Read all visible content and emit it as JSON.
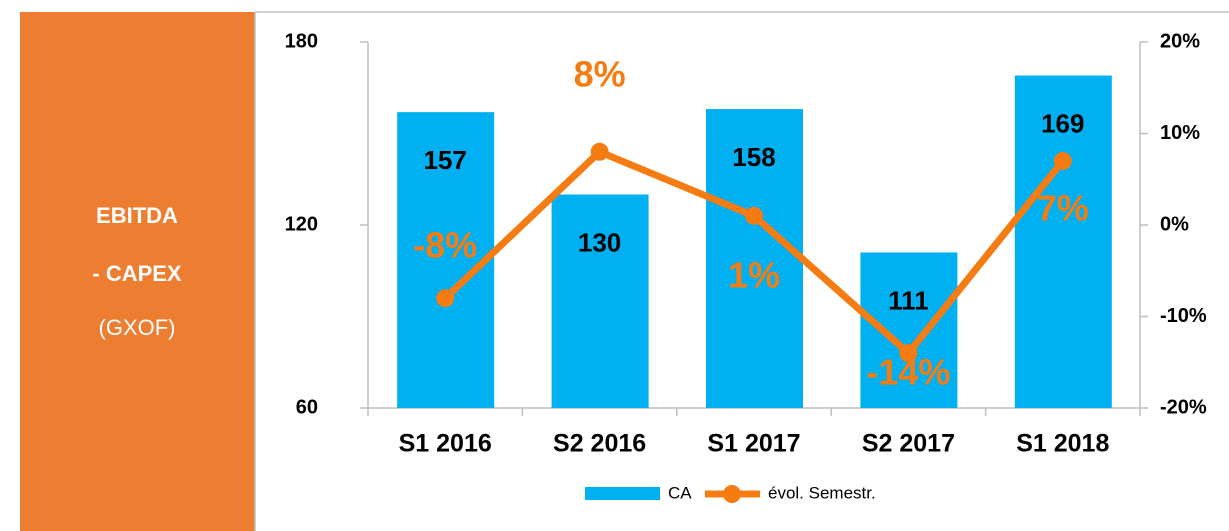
{
  "panel": {
    "line1": "EBITDA",
    "line2": "- CAPEX",
    "line3": "(GXOF)"
  },
  "chart_data": {
    "type": "bar_line",
    "categories": [
      "S1 2016",
      "S2 2016",
      "S1 2017",
      "S2 2017",
      "S1 2018"
    ],
    "series": [
      {
        "name": "CA",
        "color": "#00b0f0",
        "values": [
          157,
          130,
          158,
          111,
          169
        ]
      },
      {
        "name": "évol. Semestr.",
        "color": "#f57c12",
        "axis": "y2",
        "values": [
          -8,
          8,
          1,
          -14,
          7
        ],
        "value_labels": [
          "-8%",
          "8%",
          "1%",
          "-14%",
          "7%"
        ]
      }
    ],
    "ylim": [
      60,
      180
    ],
    "yticks": [
      60,
      120,
      180
    ],
    "y2lim": [
      -20,
      20
    ],
    "y2ticks": [
      {
        "value": -20,
        "label": "-20%"
      },
      {
        "value": -10,
        "label": "-10%"
      },
      {
        "value": 0,
        "label": "0%"
      },
      {
        "value": 10,
        "label": "10%"
      },
      {
        "value": 20,
        "label": "20%"
      }
    ]
  }
}
